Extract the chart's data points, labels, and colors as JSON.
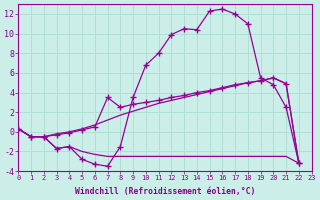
{
  "bg_color": "#cceee8",
  "line_color": "#990099",
  "grid_color": "#aaddcc",
  "xlabel": "Windchill (Refroidissement éolien,°C)",
  "xlabel_color": "#880088",
  "tick_color": "#880088",
  "ylim": [
    -4,
    13
  ],
  "xlim": [
    0,
    23
  ],
  "yticks": [
    -4,
    -2,
    0,
    2,
    4,
    6,
    8,
    10,
    12
  ],
  "xticks": [
    0,
    1,
    2,
    3,
    4,
    5,
    6,
    7,
    8,
    9,
    10,
    11,
    12,
    13,
    14,
    15,
    16,
    17,
    18,
    19,
    20,
    21,
    22,
    23
  ],
  "s1_x": [
    0,
    1,
    2,
    3,
    4,
    5,
    6,
    7,
    8,
    9,
    10,
    11,
    12,
    13,
    14,
    15,
    16,
    17,
    18,
    19,
    20,
    21,
    22
  ],
  "s1_y": [
    0.3,
    -0.5,
    -0.5,
    -1.7,
    -1.5,
    -2.8,
    -3.3,
    -3.5,
    -1.5,
    3.5,
    6.8,
    8.0,
    9.9,
    10.5,
    10.4,
    12.3,
    12.5,
    12.0,
    11.0,
    5.5,
    4.8,
    2.5,
    -3.2
  ],
  "s2_x": [
    0,
    1,
    2,
    3,
    4,
    5,
    6,
    7,
    8,
    9,
    10,
    11,
    12,
    13,
    14,
    15,
    16,
    17,
    18,
    19,
    20,
    21,
    22
  ],
  "s2_y": [
    0.3,
    -0.5,
    -0.5,
    -0.3,
    -0.1,
    0.2,
    0.5,
    3.5,
    2.5,
    2.8,
    3.0,
    3.2,
    3.5,
    3.7,
    4.0,
    4.2,
    4.5,
    4.8,
    5.0,
    5.2,
    5.5,
    4.9,
    -3.2
  ],
  "s3_x": [
    0,
    1,
    2,
    3,
    4,
    5,
    6,
    7,
    8,
    9,
    10,
    11,
    12,
    13,
    14,
    15,
    16,
    17,
    18,
    19,
    20,
    21,
    22
  ],
  "s3_y": [
    0.3,
    -0.5,
    -0.5,
    -0.2,
    0.0,
    0.3,
    0.7,
    1.2,
    1.7,
    2.1,
    2.5,
    2.9,
    3.2,
    3.5,
    3.8,
    4.1,
    4.4,
    4.7,
    5.0,
    5.2,
    5.5,
    4.9,
    -3.2
  ],
  "s4_x": [
    0,
    1,
    2,
    3,
    4,
    5,
    6,
    7,
    8,
    9,
    10,
    11,
    12,
    13,
    14,
    15,
    16,
    17,
    18,
    19,
    20,
    21,
    22
  ],
  "s4_y": [
    0.3,
    -0.5,
    -0.5,
    -1.7,
    -1.5,
    -2.0,
    -2.3,
    -2.5,
    -2.5,
    -2.5,
    -2.5,
    -2.5,
    -2.5,
    -2.5,
    -2.5,
    -2.5,
    -2.5,
    -2.5,
    -2.5,
    -2.5,
    -2.5,
    -2.5,
    -3.2
  ]
}
